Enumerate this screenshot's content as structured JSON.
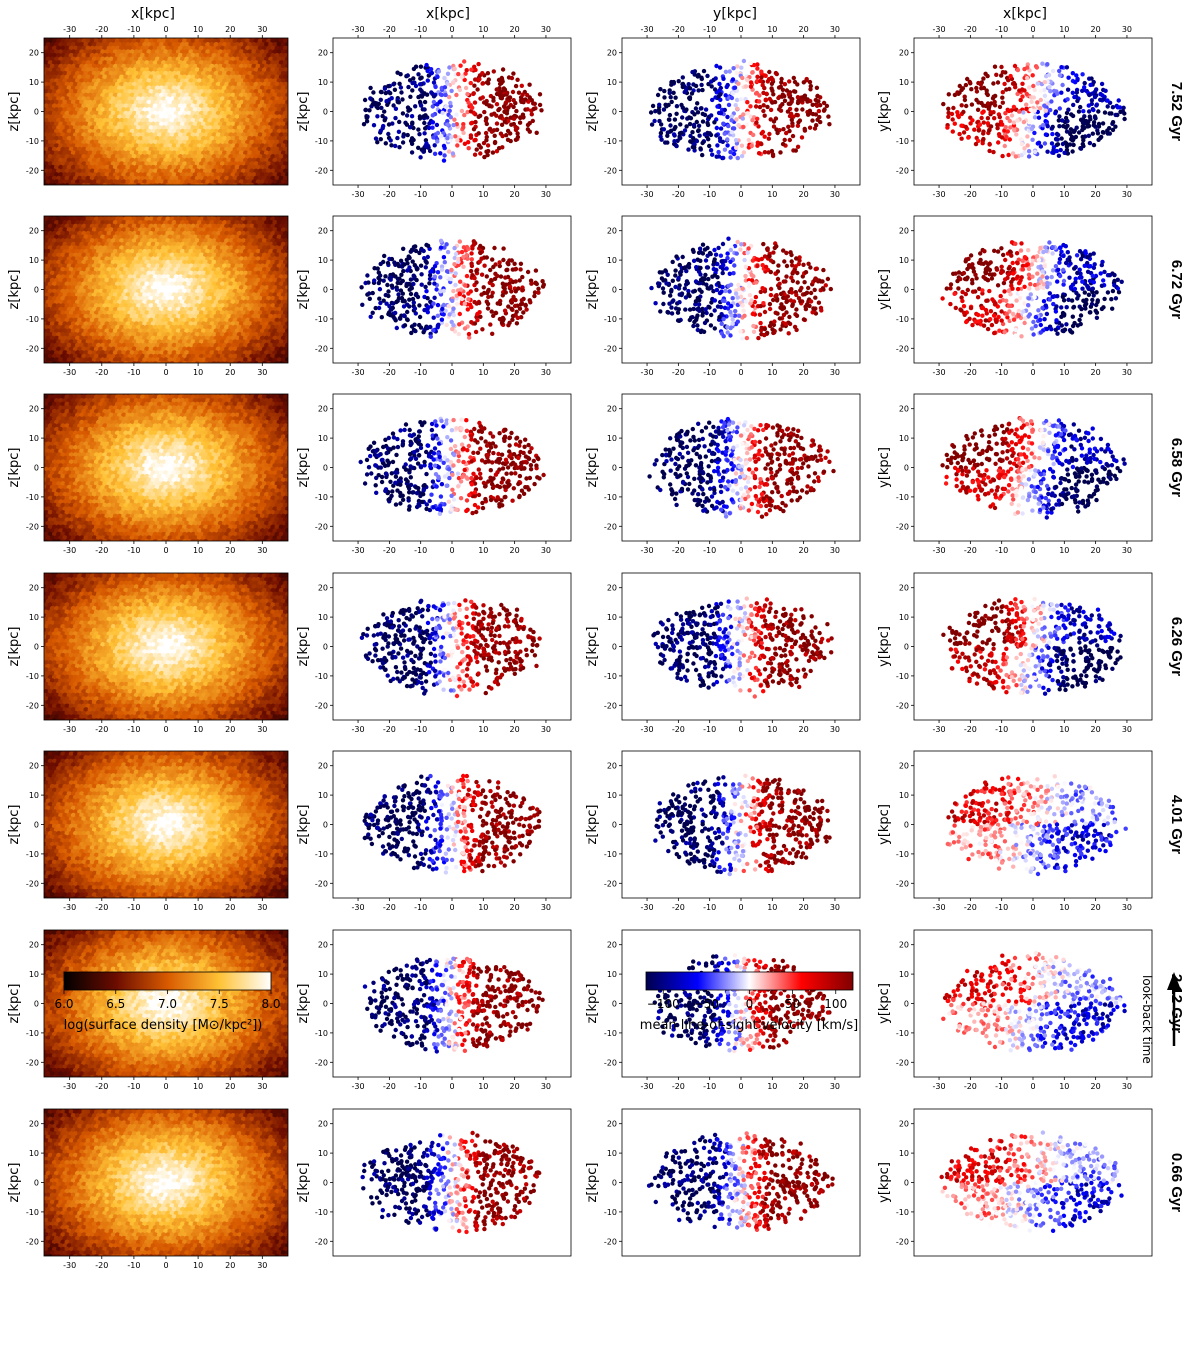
{
  "chart_data": {
    "type": "heatmap",
    "description_layout": "4 columns x 7 rows of hexbin maps; rows ordered by look-back time",
    "columns": [
      {
        "kind": "density",
        "top_xlabel": "x[kpc]",
        "ylabel": "z[kpc]",
        "colormap": "afmhot"
      },
      {
        "kind": "velocity",
        "top_xlabel": "x[kpc]",
        "ylabel": "z[kpc]",
        "colormap": "seismic"
      },
      {
        "kind": "velocity",
        "top_xlabel": "y[kpc]",
        "ylabel": "z[kpc]",
        "colormap": "seismic"
      },
      {
        "kind": "velocity",
        "top_xlabel": "x[kpc]",
        "ylabel": "y[kpc]",
        "colormap": "seismic"
      }
    ],
    "rows": [
      {
        "time_label": "7.52 Gyr"
      },
      {
        "time_label": "6.72 Gyr"
      },
      {
        "time_label": "6.58 Gyr"
      },
      {
        "time_label": "6.26 Gyr"
      },
      {
        "time_label": "4.01 Gyr"
      },
      {
        "time_label": "2.12 Gyr"
      },
      {
        "time_label": "0.66 Gyr"
      }
    ],
    "xlim": [
      -38,
      38
    ],
    "ylim": [
      -25,
      25
    ],
    "x_ticks": [
      "-30",
      "-20",
      "-10",
      "0",
      "10",
      "20",
      "30"
    ],
    "y_ticks": [
      "-20",
      "-10",
      "0",
      "10",
      "20"
    ],
    "colorbar_density": {
      "label": "log(surface density [M⊙/kpc²])",
      "range": [
        6.0,
        8.0
      ],
      "ticks": [
        "6.0",
        "6.5",
        "7.0",
        "7.5",
        "8.0"
      ]
    },
    "colorbar_velocity": {
      "label": "mean line-of-sight velocity [km/s]",
      "range": [
        -120,
        120
      ],
      "ticks": [
        "−100",
        "−50",
        "0",
        "50",
        "100"
      ]
    },
    "arrow_label": "look-back time"
  }
}
